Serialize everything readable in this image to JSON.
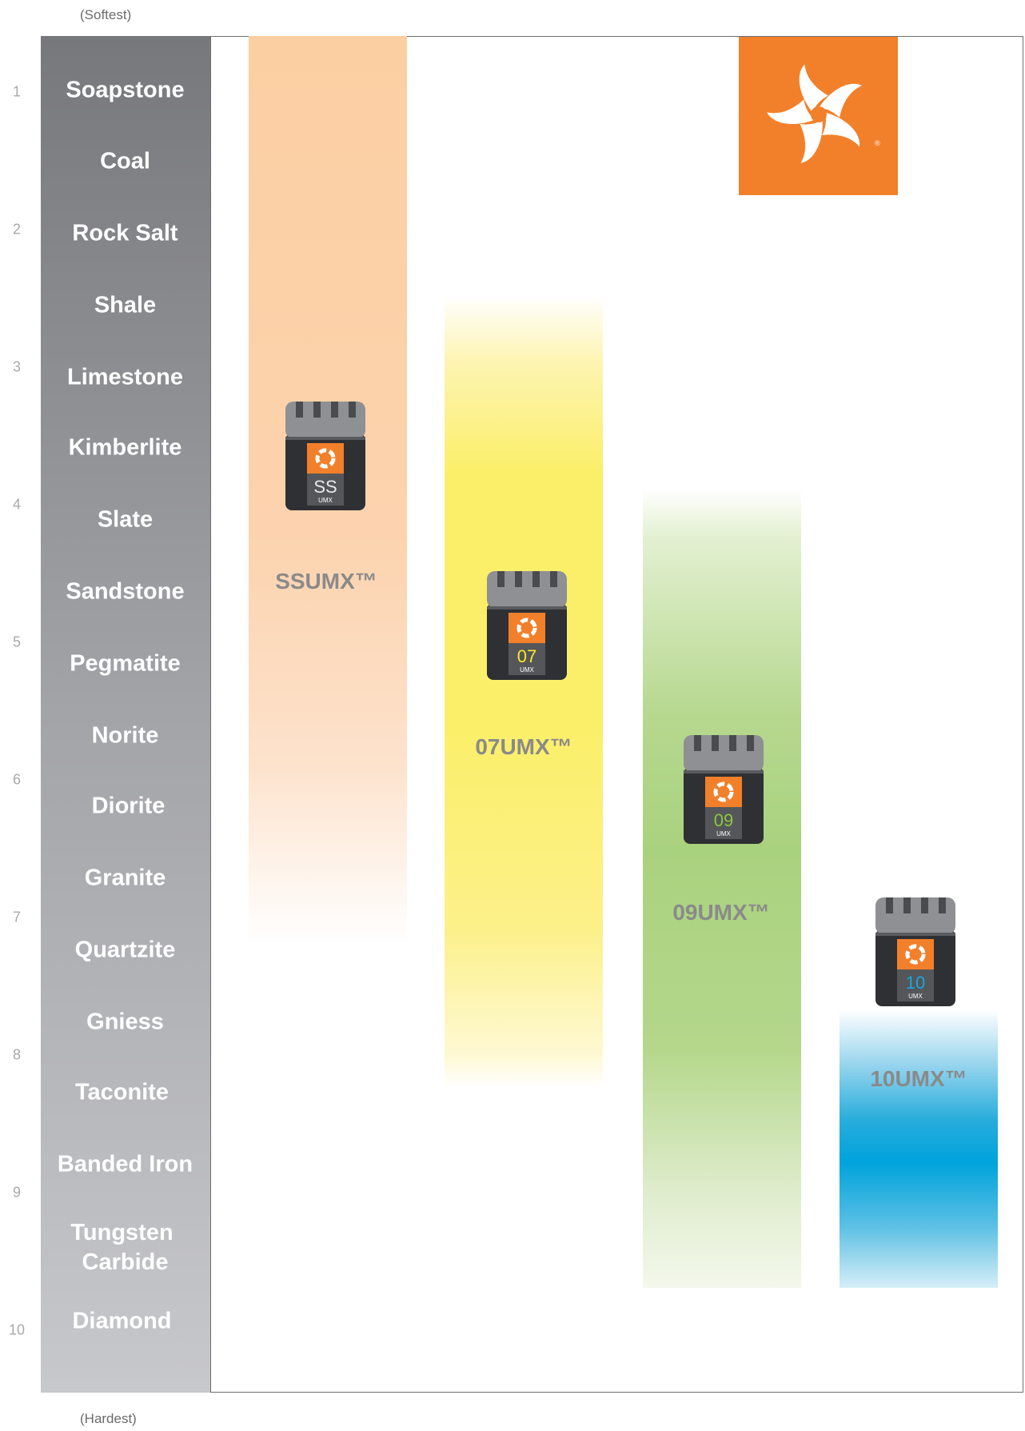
{
  "captions": {
    "top": "(Softest)",
    "bottom": "(Hardest)"
  },
  "colors": {
    "brand_orange": "#f2802b",
    "ssumx_band": "#fccfa2",
    "07umx_band": "#fbef6a",
    "09umx_band": "#a9d27e",
    "10umx_band": "#00a3dc",
    "rock_column": "#8e8f93"
  },
  "logo": {
    "icon": "swirl-bloom-logo-icon",
    "mark": "®"
  },
  "chart_data": {
    "type": "table",
    "hardness_scale": [
      "1",
      "2",
      "3",
      "4",
      "5",
      "6",
      "7",
      "8",
      "9",
      "10"
    ],
    "materials": [
      "Soapstone",
      "Coal",
      "Rock Salt",
      "Shale",
      "Limestone",
      "Kimberlite",
      "Slate",
      "Sandstone",
      "Pegmatite",
      "Norite",
      "Diorite",
      "Granite",
      "Quartzite",
      "Gniess",
      "Taconite",
      "Banded Iron",
      "Tungsten Carbide",
      "Diamond"
    ],
    "products": [
      {
        "name": "SSUMX™",
        "bit_code": "SS",
        "bit_sub": "UMX",
        "bit_color": "#e9e9e9",
        "from_hardness": 1,
        "to_hardness": 7.2
      },
      {
        "name": "07UMX™",
        "bit_code": "07",
        "bit_sub": "UMX",
        "bit_color": "#f6ea2b",
        "from_hardness": 2.6,
        "to_hardness": 8.3
      },
      {
        "name": "09UMX™",
        "bit_code": "09",
        "bit_sub": "UMX",
        "bit_color": "#8cc63f",
        "from_hardness": 4,
        "to_hardness": 9.7
      },
      {
        "name": "10UMX™",
        "bit_code": "10",
        "bit_sub": "UMX",
        "bit_color": "#1aa7de",
        "from_hardness": 7.7,
        "to_hardness": 9.7
      }
    ]
  }
}
